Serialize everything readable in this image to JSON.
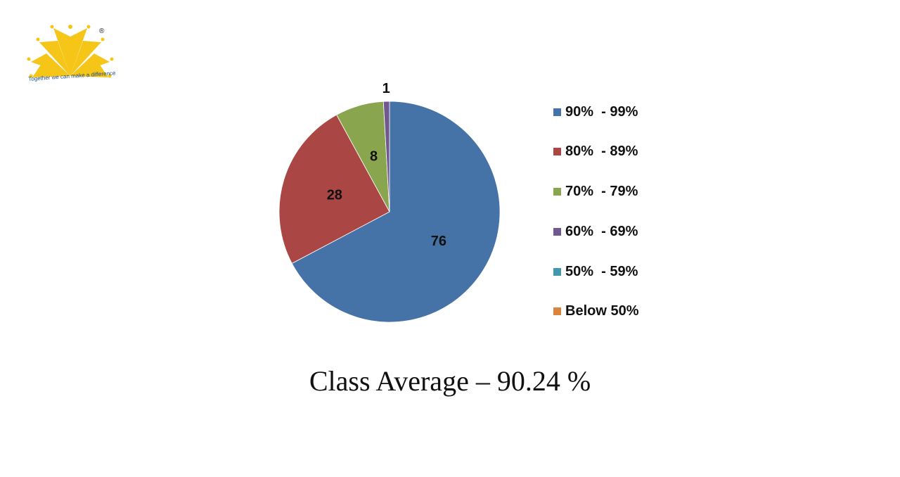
{
  "logo": {
    "tagline": "Together we can make a difference",
    "registered_mark": "®"
  },
  "chart_data": {
    "type": "pie",
    "title": "",
    "categories": [
      "90%  - 99%",
      "80%  - 89%",
      "70%  - 79%",
      "60%  - 69%",
      "50%  - 59%",
      "Below 50%"
    ],
    "values": [
      76,
      28,
      8,
      1,
      0,
      0
    ],
    "data_labels": [
      "76",
      "28",
      "8",
      "1",
      "",
      ""
    ],
    "colors": [
      "#4572a7",
      "#aa4643",
      "#89a54e",
      "#71588f",
      "#4198af",
      "#db843d"
    ],
    "legend_position": "right"
  },
  "caption": "Class Average – 90.24 %"
}
